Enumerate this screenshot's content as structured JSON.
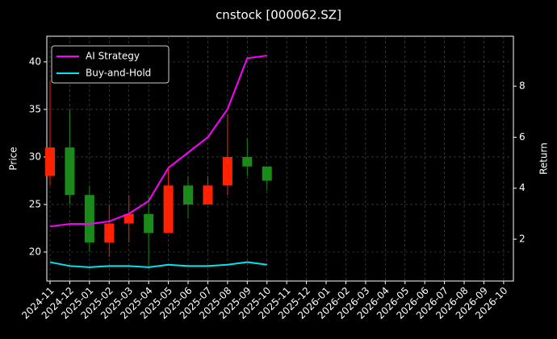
{
  "chart_data": {
    "type": "candlestick",
    "title": "cnstock [000062.SZ]",
    "ylabel": "Price",
    "y2label": "Return",
    "x": [
      "2024-11",
      "2024-12",
      "2025-01",
      "2025-02",
      "2025-03",
      "2025-04",
      "2025-05",
      "2025-06",
      "2025-07",
      "2025-08",
      "2025-09",
      "2025-10"
    ],
    "open": [
      28,
      31,
      26,
      21,
      23,
      24,
      22,
      27,
      25,
      27,
      30,
      29
    ],
    "high": [
      38,
      35,
      27,
      25,
      26,
      26,
      29,
      28,
      28,
      34.5,
      32,
      29
    ],
    "low": [
      27,
      25,
      20,
      19.5,
      21,
      18.5,
      22,
      23.5,
      25,
      26,
      28,
      26.5
    ],
    "close": [
      31,
      26,
      21,
      23,
      24,
      22,
      27,
      25,
      27,
      30,
      29,
      27.5
    ],
    "up_color": "#ff2200",
    "down_color": "#1a8a1a",
    "series": [
      {
        "name": "AI Strategy",
        "color": "#ff00ff",
        "axis": "y2",
        "values": [
          2.5,
          2.6,
          2.6,
          2.7,
          3.0,
          3.5,
          4.8,
          5.4,
          6.0,
          7.1,
          9.1,
          9.2
        ]
      },
      {
        "name": "Buy-and-Hold",
        "color": "#00e5ee",
        "axis": "y2",
        "values": [
          1.1,
          0.95,
          0.9,
          0.95,
          0.95,
          0.9,
          1.0,
          0.95,
          0.95,
          1.0,
          1.1,
          1.0
        ]
      }
    ],
    "xticks": [
      "2024-11",
      "2024-12",
      "2025-01",
      "2025-02",
      "2025-03",
      "2025-04",
      "2025-05",
      "2025-06",
      "2025-07",
      "2025-08",
      "2025-09",
      "2025-10",
      "2025-11",
      "2025-12",
      "2026-01",
      "2026-02",
      "2026-03",
      "2026-04",
      "2026-05",
      "2026-06",
      "2026-07",
      "2026-08",
      "2026-09",
      "2026-10"
    ],
    "ylim": [
      16.95,
      42.7
    ],
    "yticks": [
      20,
      25,
      30,
      35,
      40
    ],
    "y2lim": [
      0.36,
      9.96
    ],
    "y2ticks": [
      2,
      4,
      6,
      8
    ],
    "grid": true,
    "legend": "upper left"
  }
}
